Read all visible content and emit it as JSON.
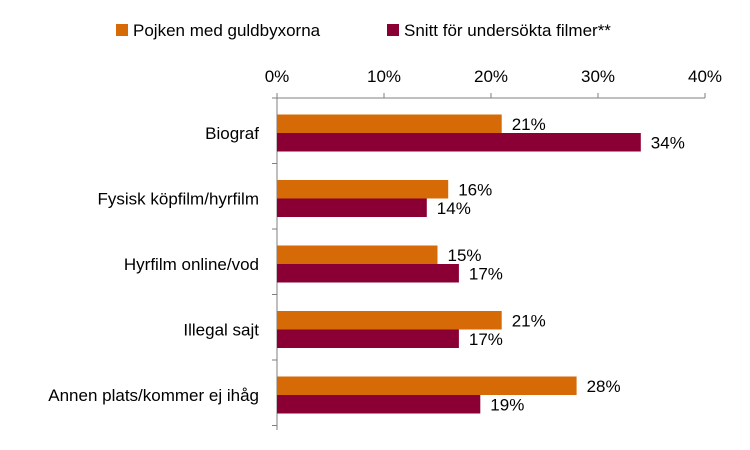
{
  "chart_data": {
    "type": "bar",
    "orientation": "horizontal",
    "categories": [
      "Biograf",
      "Fysisk köpfilm/hyrfilm",
      "Hyrfilm online/vod",
      "Illegal sajt",
      "Annen plats/kommer ej ihåg"
    ],
    "series": [
      {
        "name": "Pojken med guldbyxorna",
        "color": "#d66a06",
        "values": [
          21,
          16,
          15,
          21,
          28
        ],
        "labels": [
          "21%",
          "16%",
          "15%",
          "21%",
          "28%"
        ]
      },
      {
        "name": "Snitt för undersökta filmer**",
        "color": "#8b0034",
        "values": [
          34,
          14,
          17,
          17,
          19
        ],
        "labels": [
          "34%",
          "14%",
          "17%",
          "17%",
          "19%"
        ]
      }
    ],
    "xlim": [
      0,
      40
    ],
    "ticks": [
      0,
      10,
      20,
      30,
      40
    ],
    "tick_labels": [
      "0%",
      "10%",
      "20%",
      "30%",
      "40%"
    ],
    "axis_position": "top",
    "legend_position": "top",
    "grid": false
  }
}
